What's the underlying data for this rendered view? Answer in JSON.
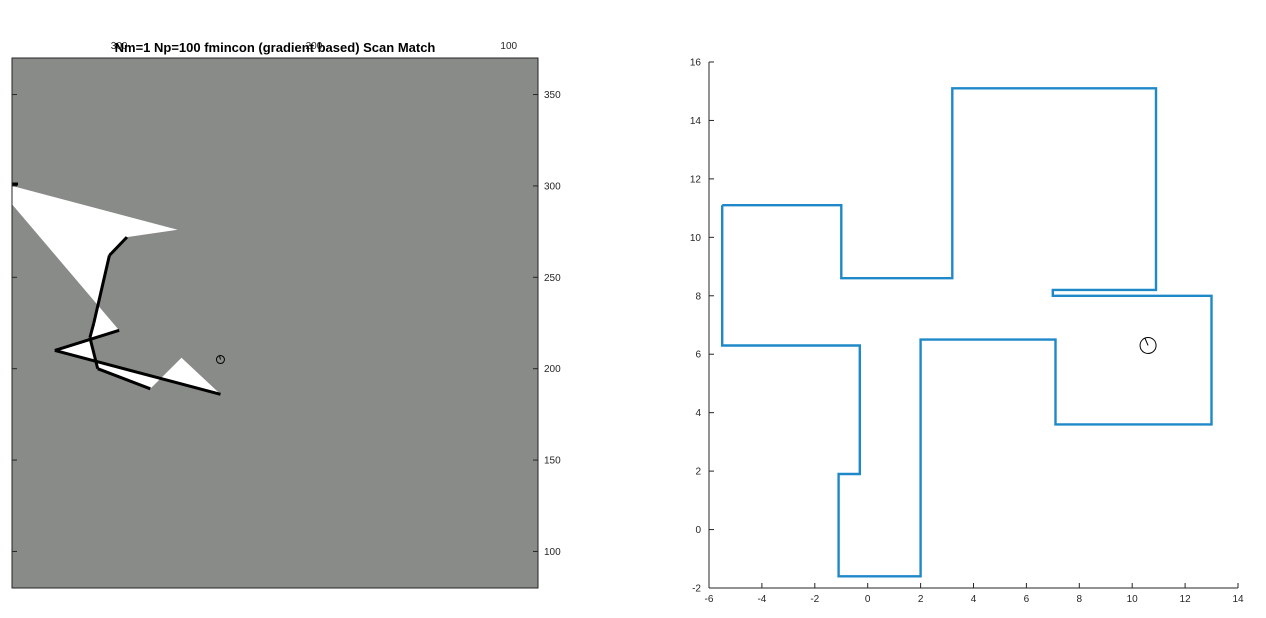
{
  "colors": {
    "background": "#ffffff",
    "unknown_region": "#888b87",
    "free_space": "#ffffff",
    "obstacle": "#000000",
    "trajectory": "#1f88c8",
    "axis": "#262626"
  },
  "chart_data": [
    {
      "type": "heatmap",
      "title": "Nm=1 Np=100 fmincon (gradient based) Scan Match",
      "top_tick_labels": [
        "300",
        "200",
        "100"
      ],
      "right_tick_labels": [
        "350",
        "300",
        "250",
        "200",
        "150",
        "100"
      ],
      "xlim": [
        355,
        85
      ],
      "ylim": [
        80,
        370
      ],
      "grid": false,
      "description_free_space_polygon_data_units": [
        [
          355,
          300
        ],
        [
          270,
          276
        ],
        [
          296,
          272
        ],
        [
          305,
          262
        ],
        [
          313,
          225
        ],
        [
          315,
          217
        ],
        [
          311,
          200
        ],
        [
          284,
          189
        ],
        [
          268,
          206
        ],
        [
          248,
          186
        ],
        [
          333,
          210
        ],
        [
          300,
          221
        ],
        [
          355,
          290
        ]
      ],
      "robot_marker": {
        "x": 248,
        "y": 205
      }
    },
    {
      "type": "line",
      "title": "",
      "xlabel": "",
      "ylabel": "",
      "xlim": [
        -6,
        14
      ],
      "ylim": [
        -2,
        16
      ],
      "xticks": [
        "-6",
        "-4",
        "-2",
        "0",
        "2",
        "4",
        "6",
        "8",
        "10",
        "12",
        "14"
      ],
      "yticks": [
        "-2",
        "0",
        "2",
        "4",
        "6",
        "8",
        "10",
        "12",
        "14",
        "16"
      ],
      "grid": false,
      "series": [
        {
          "x": [
            -5.5,
            -1.0,
            -1.0,
            3.2,
            3.2,
            10.9,
            10.9,
            7.0,
            7.0,
            13.0,
            13.0,
            7.1,
            7.1,
            2.0,
            2.0,
            -1.1,
            -1.1,
            -0.3,
            -0.3,
            -5.5,
            -5.5
          ],
          "y": [
            11.1,
            11.1,
            8.6,
            8.6,
            15.1,
            15.1,
            8.2,
            8.2,
            8.0,
            8.0,
            3.6,
            3.6,
            6.5,
            6.5,
            -1.6,
            -1.6,
            1.9,
            1.9,
            6.3,
            6.3,
            11.1
          ]
        }
      ],
      "robot_marker": {
        "x": 10.6,
        "y": 6.3
      }
    }
  ]
}
